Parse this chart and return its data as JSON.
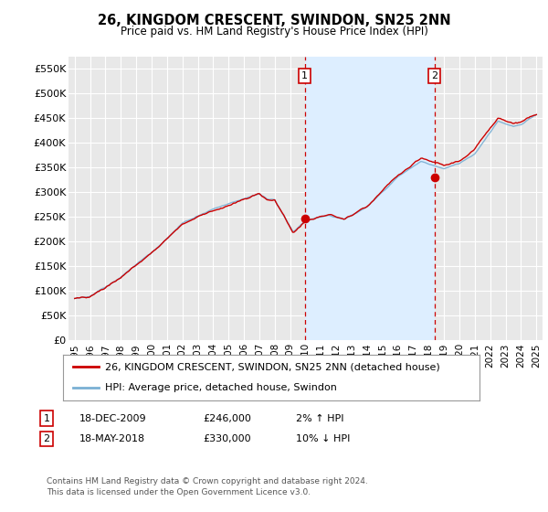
{
  "title": "26, KINGDOM CRESCENT, SWINDON, SN25 2NN",
  "subtitle": "Price paid vs. HM Land Registry's House Price Index (HPI)",
  "ylabel_ticks": [
    "£0",
    "£50K",
    "£100K",
    "£150K",
    "£200K",
    "£250K",
    "£300K",
    "£350K",
    "£400K",
    "£450K",
    "£500K",
    "£550K"
  ],
  "ytick_values": [
    0,
    50000,
    100000,
    150000,
    200000,
    250000,
    300000,
    350000,
    400000,
    450000,
    500000,
    550000
  ],
  "ylim": [
    0,
    575000
  ],
  "xlim_start": 1994.6,
  "xlim_end": 2025.4,
  "background_color": "#ffffff",
  "plot_bg_color": "#e8e8e8",
  "grid_color": "#ffffff",
  "hpi_color": "#7ab0d4",
  "price_color": "#cc0000",
  "purchase1_x": 2009.96,
  "purchase1_y": 246000,
  "purchase2_x": 2018.38,
  "purchase2_y": 330000,
  "vline_color": "#cc0000",
  "highlight_bg": "#ddeeff",
  "legend_label1": "26, KINGDOM CRESCENT, SWINDON, SN25 2NN (detached house)",
  "legend_label2": "HPI: Average price, detached house, Swindon",
  "annotation1_num": "1",
  "annotation1_date": "18-DEC-2009",
  "annotation1_price": "£246,000",
  "annotation1_hpi": "2% ↑ HPI",
  "annotation2_num": "2",
  "annotation2_date": "18-MAY-2018",
  "annotation2_price": "£330,000",
  "annotation2_hpi": "10% ↓ HPI",
  "footer": "Contains HM Land Registry data © Crown copyright and database right 2024.\nThis data is licensed under the Open Government Licence v3.0.",
  "xticks": [
    1995,
    1996,
    1997,
    1998,
    1999,
    2000,
    2001,
    2002,
    2003,
    2004,
    2005,
    2006,
    2007,
    2008,
    2009,
    2010,
    2011,
    2012,
    2013,
    2014,
    2015,
    2016,
    2017,
    2018,
    2019,
    2020,
    2021,
    2022,
    2023,
    2024,
    2025
  ]
}
